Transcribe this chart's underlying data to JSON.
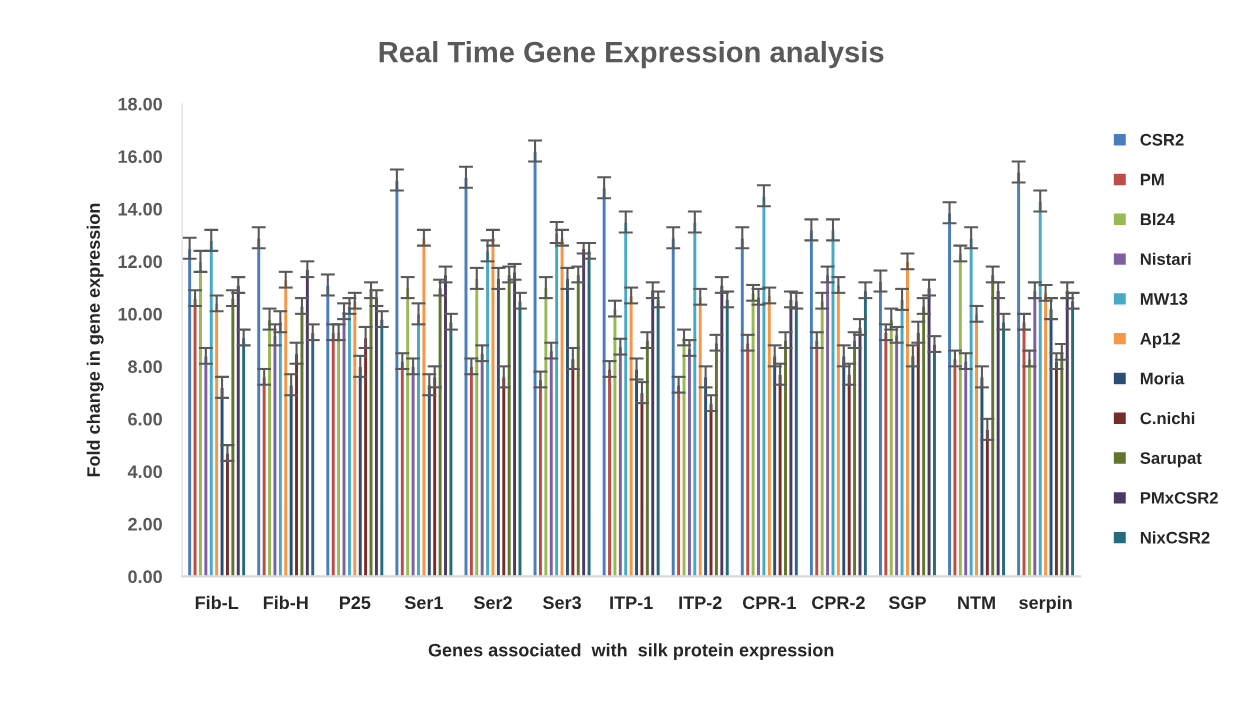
{
  "chart_data": {
    "type": "bar",
    "title": "Real Time Gene Expression analysis",
    "xlabel": "Genes associated  with  silk protein expression",
    "ylabel": "Fold change in gene expression",
    "categories": [
      "Fib-L",
      "Fib-H",
      "P25",
      "Ser1",
      "Ser2",
      "Ser3",
      "ITP-1",
      "ITP-2",
      "CPR-1",
      "CPR-2",
      "SGP",
      "NTM",
      "serpin"
    ],
    "ylim": [
      0,
      18
    ],
    "yticks": [
      {
        "value": 0,
        "label": "0.00"
      },
      {
        "value": 2,
        "label": "2.00"
      },
      {
        "value": 4,
        "label": "4.00"
      },
      {
        "value": 6,
        "label": "6.00"
      },
      {
        "value": 8,
        "label": "8.00"
      },
      {
        "value": 10,
        "label": "10.00"
      },
      {
        "value": 12,
        "label": "12.00"
      },
      {
        "value": 14,
        "label": "14.00"
      },
      {
        "value": 16,
        "label": "16.00"
      },
      {
        "value": 18,
        "label": "18.00"
      }
    ],
    "grid": false,
    "legend": "right",
    "series": [
      {
        "name": "CSR2",
        "color": "#4a7ebb",
        "values": [
          12.5,
          12.9,
          11.1,
          15.1,
          15.2,
          16.2,
          14.8,
          12.9,
          12.9,
          13.2,
          11.25,
          13.85,
          15.4
        ],
        "errors": [
          0.4,
          0.4,
          0.4,
          0.4,
          0.4,
          0.4,
          0.4,
          0.4,
          0.4,
          0.4,
          0.4,
          0.4,
          0.4
        ]
      },
      {
        "name": "PM",
        "color": "#be4b48",
        "values": [
          10.6,
          7.6,
          9.3,
          8.2,
          8.0,
          7.5,
          7.9,
          7.3,
          8.9,
          9.0,
          9.3,
          8.3,
          9.7
        ],
        "errors": [
          0.3,
          0.3,
          0.3,
          0.3,
          0.3,
          0.3,
          0.3,
          0.3,
          0.3,
          0.3,
          0.3,
          0.3,
          0.3
        ]
      },
      {
        "name": "Bl24",
        "color": "#98b954",
        "values": [
          12.0,
          9.8,
          9.3,
          11.0,
          11.35,
          11.0,
          10.2,
          9.1,
          10.8,
          10.5,
          9.8,
          12.3,
          8.3
        ],
        "errors": [
          0.4,
          0.4,
          0.3,
          0.4,
          0.4,
          0.4,
          0.3,
          0.3,
          0.3,
          0.3,
          0.4,
          0.3,
          0.3
        ]
      },
      {
        "name": "Nistari",
        "color": "#7d60a0",
        "values": [
          8.4,
          9.2,
          10.1,
          8.0,
          8.5,
          8.6,
          8.75,
          8.7,
          10.65,
          11.5,
          9.2,
          8.2,
          10.9
        ],
        "errors": [
          0.3,
          0.4,
          0.3,
          0.3,
          0.3,
          0.3,
          0.3,
          0.3,
          0.3,
          0.3,
          0.3,
          0.3,
          0.3
        ]
      },
      {
        "name": "MW13",
        "color": "#46aac5",
        "values": [
          12.8,
          9.7,
          10.3,
          10.0,
          12.4,
          13.1,
          13.5,
          13.5,
          14.5,
          13.2,
          10.55,
          12.9,
          14.3
        ],
        "errors": [
          0.4,
          0.4,
          0.3,
          0.4,
          0.4,
          0.4,
          0.4,
          0.4,
          0.4,
          0.4,
          0.4,
          0.4,
          0.4
        ]
      },
      {
        "name": "Ap12",
        "color": "#f79646",
        "values": [
          10.4,
          11.3,
          10.5,
          12.9,
          12.9,
          12.9,
          10.7,
          10.65,
          10.7,
          11.1,
          12.0,
          10.0,
          10.8
        ],
        "errors": [
          0.3,
          0.3,
          0.3,
          0.3,
          0.3,
          0.3,
          0.3,
          0.3,
          0.3,
          0.3,
          0.3,
          0.3,
          0.3
        ]
      },
      {
        "name": "Moria",
        "color": "#2c4d75",
        "values": [
          7.2,
          7.3,
          8.0,
          7.3,
          11.35,
          11.35,
          7.9,
          7.6,
          8.4,
          8.4,
          8.4,
          7.6,
          10.2
        ],
        "errors": [
          0.4,
          0.4,
          0.4,
          0.4,
          0.4,
          0.4,
          0.4,
          0.4,
          0.4,
          0.4,
          0.4,
          0.4,
          0.4
        ]
      },
      {
        "name": "C.nichi",
        "color": "#772c2a",
        "values": [
          4.7,
          8.5,
          9.1,
          7.6,
          7.6,
          8.3,
          7.0,
          6.6,
          7.7,
          7.7,
          9.3,
          5.6,
          8.2
        ],
        "errors": [
          0.3,
          0.4,
          0.4,
          0.4,
          0.4,
          0.4,
          0.4,
          0.3,
          0.4,
          0.4,
          0.4,
          0.4,
          0.3
        ]
      },
      {
        "name": "Sarupat",
        "color": "#5f7530",
        "values": [
          10.6,
          10.3,
          10.9,
          11.0,
          11.5,
          11.5,
          9.0,
          8.9,
          9.0,
          9.0,
          10.3,
          11.5,
          8.55
        ],
        "errors": [
          0.3,
          0.3,
          0.3,
          0.3,
          0.3,
          0.3,
          0.3,
          0.3,
          0.3,
          0.3,
          0.3,
          0.3,
          0.3
        ]
      },
      {
        "name": "PMxCSR2",
        "color": "#4b3b62",
        "values": [
          11.1,
          11.7,
          10.6,
          11.5,
          11.6,
          12.5,
          10.9,
          11.1,
          10.55,
          9.5,
          11.0,
          10.9,
          10.9
        ],
        "errors": [
          0.3,
          0.3,
          0.3,
          0.3,
          0.3,
          0.2,
          0.3,
          0.3,
          0.3,
          0.3,
          0.3,
          0.3,
          0.3
        ]
      },
      {
        "name": "NixCSR2",
        "color": "#276a7c",
        "values": [
          9.1,
          9.3,
          9.8,
          9.7,
          10.5,
          12.4,
          10.55,
          10.55,
          10.5,
          10.9,
          8.85,
          9.7,
          10.5
        ],
        "errors": [
          0.3,
          0.3,
          0.3,
          0.3,
          0.3,
          0.3,
          0.3,
          0.3,
          0.3,
          0.3,
          0.3,
          0.3,
          0.3
        ]
      }
    ]
  }
}
